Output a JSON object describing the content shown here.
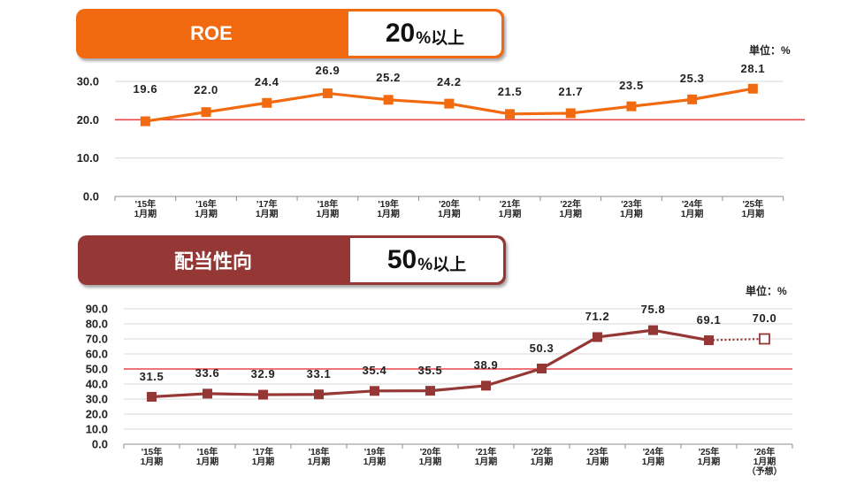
{
  "roe": {
    "banner": {
      "label": "ROE",
      "target_value": "20",
      "target_suffix": "%以上"
    },
    "unit": "単位：%",
    "chart_data": {
      "type": "line",
      "categories": [
        [
          "'15年",
          "1月期"
        ],
        [
          "'16年",
          "1月期"
        ],
        [
          "'17年",
          "1月期"
        ],
        [
          "'18年",
          "1月期"
        ],
        [
          "'19年",
          "1月期"
        ],
        [
          "'20年",
          "1月期"
        ],
        [
          "'21年",
          "1月期"
        ],
        [
          "'22年",
          "1月期"
        ],
        [
          "'23年",
          "1月期"
        ],
        [
          "'24年",
          "1月期"
        ],
        [
          "'25年",
          "1月期"
        ]
      ],
      "series": [
        {
          "values": [
            19.6,
            22.0,
            24.4,
            26.9,
            25.2,
            24.2,
            21.5,
            21.7,
            23.5,
            25.3,
            28.1
          ]
        }
      ],
      "value_labels": [
        "19.6",
        "22.0",
        "24.4",
        "26.9",
        "25.2",
        "24.2",
        "21.5",
        "21.7",
        "23.5",
        "25.3",
        "28.1"
      ],
      "yticks": [
        0,
        10,
        20,
        30
      ],
      "ytick_labels": [
        "0.0",
        "10.0",
        "20.0",
        "30.0"
      ],
      "ylim": [
        0,
        30
      ],
      "target_line": 20,
      "grid": true,
      "line_color": "#f26a0f",
      "target_color": "#e8474a"
    },
    "colors": {
      "accent": "#f26a0f"
    }
  },
  "payout": {
    "banner": {
      "label": "配当性向",
      "target_value": "50",
      "target_suffix": "%以上"
    },
    "unit": "単位：%",
    "chart_data": {
      "type": "line",
      "categories": [
        [
          "'15年",
          "1月期"
        ],
        [
          "'16年",
          "1月期"
        ],
        [
          "'17年",
          "1月期"
        ],
        [
          "'18年",
          "1月期"
        ],
        [
          "'19年",
          "1月期"
        ],
        [
          "'20年",
          "1月期"
        ],
        [
          "'21年",
          "1月期"
        ],
        [
          "'22年",
          "1月期"
        ],
        [
          "'23年",
          "1月期"
        ],
        [
          "'24年",
          "1月期"
        ],
        [
          "'25年",
          "1月期"
        ],
        [
          "'26年",
          "1月期",
          "（予想）"
        ]
      ],
      "series": [
        {
          "values": [
            31.5,
            33.6,
            32.9,
            33.1,
            35.4,
            35.5,
            38.9,
            50.3,
            71.2,
            75.8,
            69.1,
            70.0
          ],
          "forecast_from_index": 11
        }
      ],
      "value_labels": [
        "31.5",
        "33.6",
        "32.9",
        "33.1",
        "35.4",
        "35.5",
        "38.9",
        "50.3",
        "71.2",
        "75.8",
        "69.1",
        "70.0"
      ],
      "yticks": [
        0,
        10,
        20,
        30,
        40,
        50,
        60,
        70,
        80,
        90
      ],
      "ytick_labels": [
        "0.0",
        "10.0",
        "20.0",
        "30.0",
        "40.0",
        "50.0",
        "60.0",
        "70.0",
        "80.0",
        "90.0"
      ],
      "ylim": [
        0,
        90
      ],
      "target_line": 50,
      "grid": true,
      "line_color": "#953735",
      "target_color": "#e8474a"
    },
    "colors": {
      "accent": "#953735"
    }
  }
}
